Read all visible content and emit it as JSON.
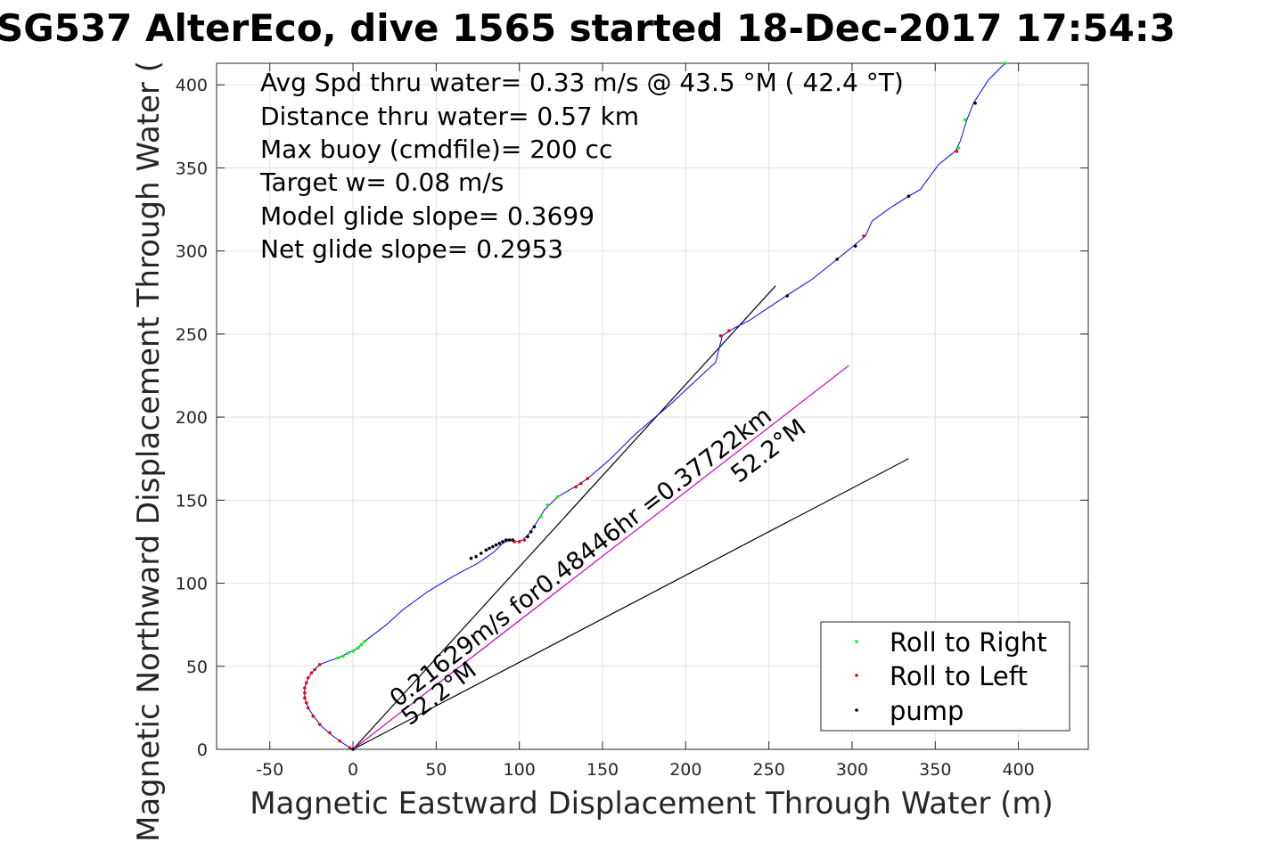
{
  "chart_data": {
    "type": "line",
    "title": "SG537 AlterEco, dive 1565 started 18-Dec-2017 17:54:3",
    "xlabel": "Magnetic Eastward Displacement Through Water (m)",
    "ylabel": "Magnetic Northward Displacement Through Water (",
    "xlim": [
      -82,
      442
    ],
    "ylim": [
      0,
      413
    ],
    "xticks": [
      -50,
      0,
      50,
      100,
      150,
      200,
      250,
      300,
      350,
      400
    ],
    "yticks": [
      0,
      50,
      100,
      150,
      200,
      250,
      300,
      350,
      400
    ],
    "grid": true,
    "info_lines": [
      "Avg Spd thru water=  0.33 m/s @  43.5 °M ( 42.4 °T)",
      "Distance thru water=  0.57 km",
      "Max buoy (cmdfile)= 200 cc",
      "Target w= 0.08 m/s",
      "Model glide slope= 0.3699",
      "Net glide slope= 0.2953"
    ],
    "track": {
      "color": "#0000ff",
      "points": [
        [
          0,
          0
        ],
        [
          -5,
          3
        ],
        [
          -12,
          8
        ],
        [
          -18,
          13
        ],
        [
          -23,
          19
        ],
        [
          -27,
          25
        ],
        [
          -29,
          31
        ],
        [
          -29,
          37
        ],
        [
          -27,
          43
        ],
        [
          -24,
          47
        ],
        [
          -20,
          51
        ],
        [
          -15,
          53
        ],
        [
          -9,
          55
        ],
        [
          -3,
          58
        ],
        [
          3,
          61
        ],
        [
          7,
          65
        ],
        [
          20,
          75
        ],
        [
          30,
          84
        ],
        [
          45,
          95
        ],
        [
          60,
          104
        ],
        [
          75,
          112
        ],
        [
          85,
          119
        ],
        [
          90,
          124
        ],
        [
          94,
          126
        ],
        [
          98,
          125
        ],
        [
          102,
          126
        ],
        [
          106,
          130
        ],
        [
          110,
          136
        ],
        [
          115,
          144
        ],
        [
          123,
          152
        ],
        [
          135,
          159
        ],
        [
          141,
          163
        ],
        [
          155,
          175
        ],
        [
          170,
          190
        ],
        [
          190,
          207
        ],
        [
          205,
          221
        ],
        [
          218,
          233
        ],
        [
          222,
          249
        ],
        [
          228,
          253
        ],
        [
          238,
          258
        ],
        [
          250,
          266
        ],
        [
          262,
          274
        ],
        [
          276,
          283
        ],
        [
          291,
          295
        ],
        [
          302,
          304
        ],
        [
          308,
          309
        ],
        [
          312,
          318
        ],
        [
          323,
          326
        ],
        [
          334,
          333
        ],
        [
          341,
          337
        ],
        [
          352,
          352
        ],
        [
          362,
          360
        ],
        [
          365,
          366
        ],
        [
          369,
          379
        ],
        [
          373,
          389
        ],
        [
          382,
          403
        ],
        [
          392,
          413
        ]
      ]
    },
    "direction_lines": [
      {
        "color": "#000000",
        "from": [
          0,
          0
        ],
        "to": [
          254,
          279
        ]
      },
      {
        "color": "#000000",
        "from": [
          0,
          0
        ],
        "to": [
          334,
          175
        ]
      },
      {
        "color": "#cc00cc",
        "from": [
          0,
          0
        ],
        "to": [
          298,
          231
        ]
      }
    ],
    "annotations": [
      {
        "text": "0.21629m/s for0.48446hr =0.37722km",
        "x": 27,
        "y": 25,
        "angle": 37.6
      },
      {
        "text": "52.2°M",
        "x": 34,
        "y": 14,
        "angle": 37.6
      },
      {
        "text": "52.2°M",
        "x": 232,
        "y": 160,
        "angle": 37.6
      }
    ],
    "series": [
      {
        "name": "Roll to Right",
        "color": "#00ff00",
        "points": [
          [
            -9,
            55
          ],
          [
            -6,
            56
          ],
          [
            -3,
            58
          ],
          [
            0,
            59
          ],
          [
            3,
            61
          ],
          [
            5,
            63
          ],
          [
            7,
            65
          ],
          [
            113,
            140
          ],
          [
            117,
            147
          ],
          [
            123,
            152
          ],
          [
            364,
            362
          ],
          [
            368,
            379
          ],
          [
            392,
            413
          ]
        ]
      },
      {
        "name": "Roll to Left",
        "color": "#ff0000",
        "points": [
          [
            -2,
            1
          ],
          [
            -8,
            5
          ],
          [
            -14,
            10
          ],
          [
            -20,
            15
          ],
          [
            -24,
            20
          ],
          [
            -27,
            25
          ],
          [
            -28,
            28
          ],
          [
            -29,
            31
          ],
          [
            -29,
            34
          ],
          [
            -29,
            37
          ],
          [
            -28,
            40
          ],
          [
            -27,
            43
          ],
          [
            -25,
            46
          ],
          [
            -23,
            48
          ],
          [
            -20,
            51
          ],
          [
            97,
            125
          ],
          [
            100,
            125
          ],
          [
            103,
            126
          ],
          [
            134,
            158
          ],
          [
            137,
            160
          ],
          [
            141,
            163
          ],
          [
            221,
            249
          ],
          [
            226,
            252
          ],
          [
            307,
            309
          ],
          [
            363,
            360
          ]
        ]
      },
      {
        "name": "pump",
        "color": "#000000",
        "points": [
          [
            0,
            0
          ],
          [
            71,
            115
          ],
          [
            74,
            116
          ],
          [
            77,
            118
          ],
          [
            80,
            120
          ],
          [
            82,
            121
          ],
          [
            84,
            122
          ],
          [
            86,
            123
          ],
          [
            88,
            124
          ],
          [
            90,
            125
          ],
          [
            92,
            126
          ],
          [
            94,
            126
          ],
          [
            96,
            126
          ],
          [
            105,
            128
          ],
          [
            107,
            131
          ],
          [
            109,
            134
          ],
          [
            261,
            273
          ],
          [
            291,
            295
          ],
          [
            302,
            303
          ],
          [
            334,
            333
          ],
          [
            374,
            389
          ]
        ]
      }
    ],
    "legend": {
      "placement": "bottom-right",
      "entries": [
        "Roll to Right",
        "Roll to Left",
        "pump"
      ]
    }
  }
}
